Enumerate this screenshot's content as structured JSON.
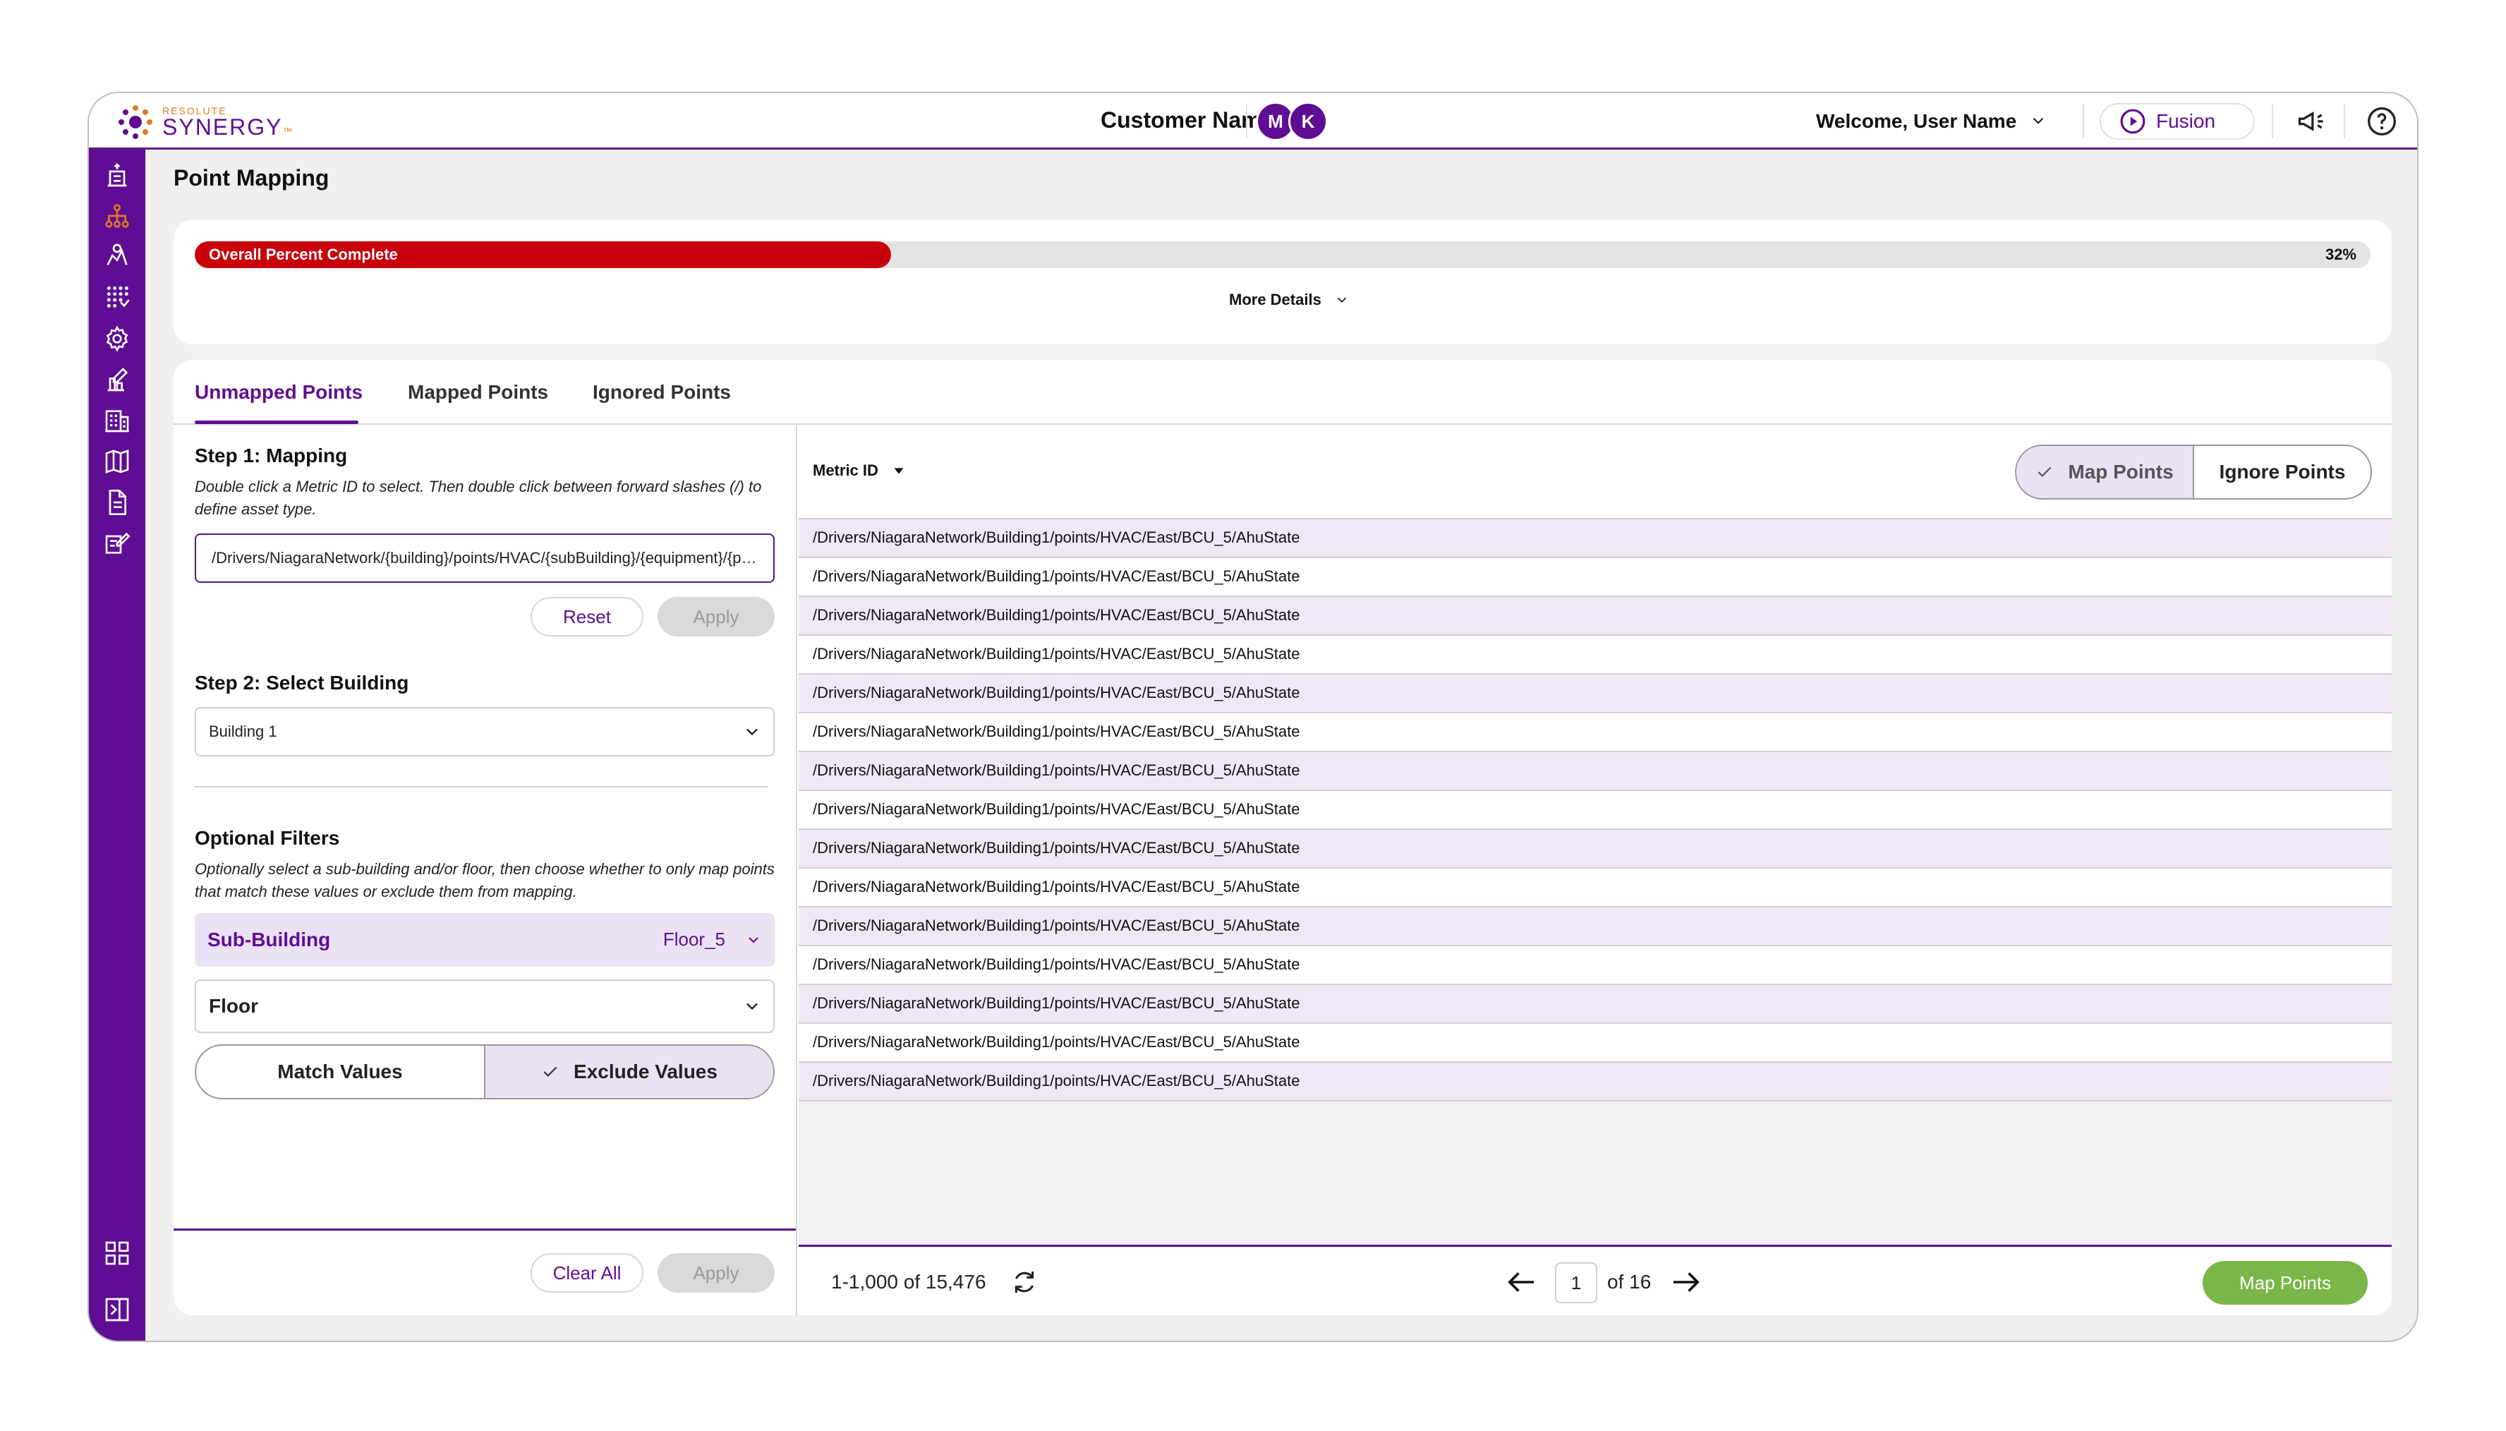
{
  "brand": {
    "small": "RESOLUTE",
    "name": "SYNERGY",
    "tm": "™"
  },
  "header": {
    "customer_name": "Customer Name",
    "avatars": [
      "M",
      "K"
    ],
    "welcome": "Welcome, User Name",
    "fusion_label": "Fusion"
  },
  "page_title": "Point Mapping",
  "progress": {
    "label": "Overall Percent Complete",
    "percent_text": "32%",
    "fraction": 0.32,
    "more_details": "More Details"
  },
  "tabs": [
    {
      "label": "Unmapped Points",
      "active": true
    },
    {
      "label": "Mapped Points",
      "active": false
    },
    {
      "label": "Ignored Points",
      "active": false
    }
  ],
  "step1": {
    "title": "Step 1: Mapping",
    "description": "Double click a Metric ID to select. Then double click between forward slashes (/) to define asset type.",
    "value": "/Drivers/NiagaraNetwork/{building}/points/HVAC/{subBuilding}/{equipment}/{point}",
    "reset_label": "Reset",
    "apply_label": "Apply"
  },
  "step2": {
    "title": "Step 2: Select Building",
    "selected": "Building 1"
  },
  "filters": {
    "title": "Optional Filters",
    "description": "Optionally select a sub-building and/or floor, then choose whether to only map points that match these values or exclude them from mapping.",
    "sub_building_label": "Sub-Building",
    "sub_building_value": "Floor_5",
    "floor_label": "Floor",
    "match_label": "Match Values",
    "exclude_label": "Exclude Values",
    "clear_label": "Clear All",
    "apply_label": "Apply"
  },
  "grid": {
    "column_header": "Metric ID",
    "map_points_label": "Map Points",
    "ignore_points_label": "Ignore Points",
    "rows": [
      "/Drivers/NiagaraNetwork/Building1/points/HVAC/East/BCU_5/AhuState",
      "/Drivers/NiagaraNetwork/Building1/points/HVAC/East/BCU_5/AhuState",
      "/Drivers/NiagaraNetwork/Building1/points/HVAC/East/BCU_5/AhuState",
      "/Drivers/NiagaraNetwork/Building1/points/HVAC/East/BCU_5/AhuState",
      "/Drivers/NiagaraNetwork/Building1/points/HVAC/East/BCU_5/AhuState",
      "/Drivers/NiagaraNetwork/Building1/points/HVAC/East/BCU_5/AhuState",
      "/Drivers/NiagaraNetwork/Building1/points/HVAC/East/BCU_5/AhuState",
      "/Drivers/NiagaraNetwork/Building1/points/HVAC/East/BCU_5/AhuState",
      "/Drivers/NiagaraNetwork/Building1/points/HVAC/East/BCU_5/AhuState",
      "/Drivers/NiagaraNetwork/Building1/points/HVAC/East/BCU_5/AhuState",
      "/Drivers/NiagaraNetwork/Building1/points/HVAC/East/BCU_5/AhuState",
      "/Drivers/NiagaraNetwork/Building1/points/HVAC/East/BCU_5/AhuState",
      "/Drivers/NiagaraNetwork/Building1/points/HVAC/East/BCU_5/AhuState",
      "/Drivers/NiagaraNetwork/Building1/points/HVAC/East/BCU_5/AhuState",
      "/Drivers/NiagaraNetwork/Building1/points/HVAC/East/BCU_5/AhuState"
    ]
  },
  "pager": {
    "count_text": "1-1,000 of 15,476",
    "page": "1",
    "of_text": "of 16",
    "map_button": "Map Points"
  },
  "colors": {
    "brand_purple": "#5f0d94",
    "progress_red": "#c8000a",
    "map_green": "#7ab648",
    "row_alt": "#efe6f6"
  },
  "icons": {
    "sidebar": [
      "building-upload-icon",
      "hierarchy-icon",
      "network-settings-icon",
      "points-grid-icon",
      "gear-icon",
      "report-edit-icon",
      "building-grid-icon",
      "map-book-icon",
      "document-icon",
      "edit-list-icon",
      "apps-grid-icon",
      "exit-icon"
    ],
    "header": [
      "fusion-play-icon",
      "megaphone-icon",
      "help-icon"
    ]
  }
}
